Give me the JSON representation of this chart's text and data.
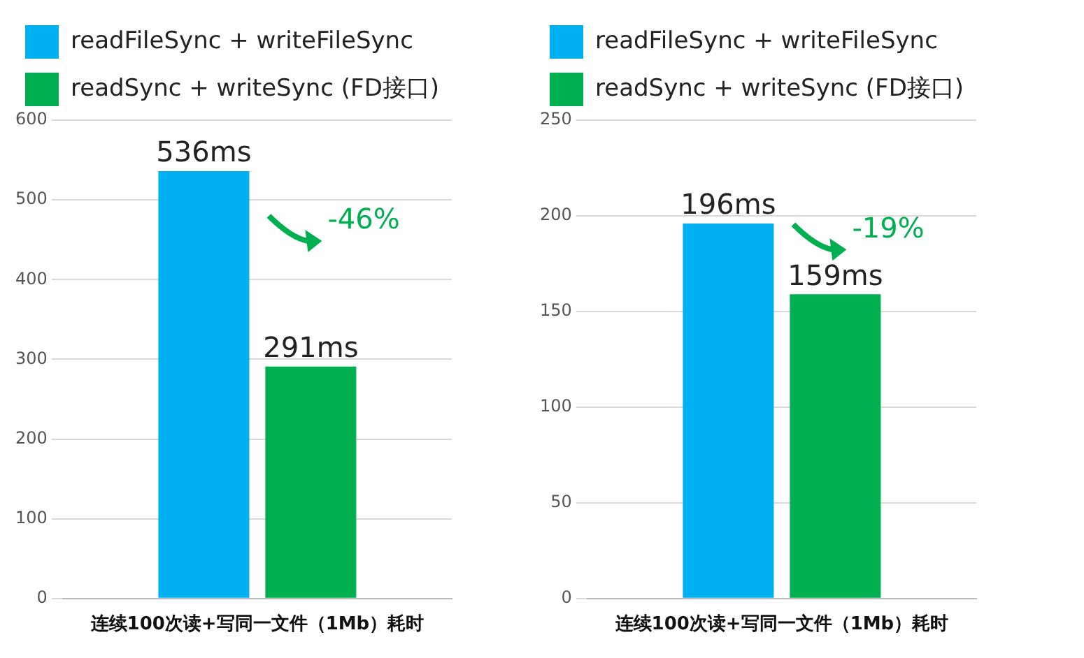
{
  "chart_data": [
    {
      "type": "bar",
      "categories": [
        "连续100次读+写同一文件（1Mb）耗时"
      ],
      "series": [
        {
          "name": "readFileSync + writeFileSync",
          "color": "#00b0f0",
          "values": [
            536
          ],
          "value_labels": [
            "536ms"
          ]
        },
        {
          "name": "readSync + writeSync (FD接口)",
          "color": "#00b050",
          "values": [
            291
          ],
          "value_labels": [
            "291ms"
          ]
        }
      ],
      "ylim": [
        0,
        600
      ],
      "yticks": [
        0,
        100,
        200,
        300,
        400,
        500,
        600
      ],
      "grid": "y",
      "legend": "top",
      "annotations": [
        "-46%"
      ]
    },
    {
      "type": "bar",
      "categories": [
        "连续100次读+写同一文件（1Mb）耗时"
      ],
      "series": [
        {
          "name": "readFileSync + writeFileSync",
          "color": "#00b0f0",
          "values": [
            196
          ],
          "value_labels": [
            "196ms"
          ]
        },
        {
          "name": "readSync + writeSync (FD接口)",
          "color": "#00b050",
          "values": [
            159
          ],
          "value_labels": [
            "159ms"
          ]
        }
      ],
      "ylim": [
        0,
        250
      ],
      "yticks": [
        0,
        50,
        100,
        150,
        200,
        250
      ],
      "grid": "y",
      "legend": "top",
      "annotations": [
        "-19%"
      ]
    }
  ]
}
